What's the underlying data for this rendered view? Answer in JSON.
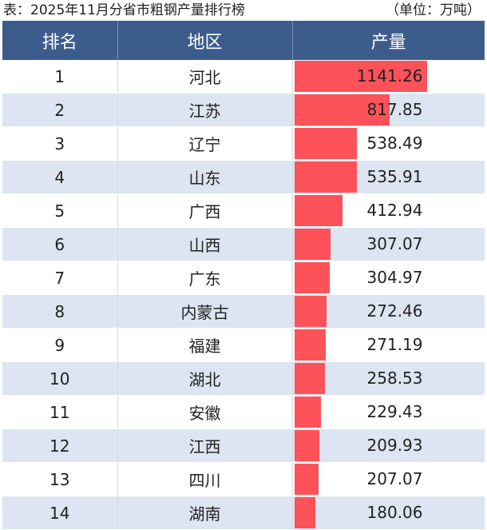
{
  "caption": {
    "title": "表：2025年11月分省市粗钢产量排行榜",
    "unit": "（单位：万吨）"
  },
  "columns": [
    "排名",
    "地区",
    "产量"
  ],
  "colors": {
    "header": "#3c5d8c",
    "bar": "#fe525a",
    "row_alt": "#dce5f1"
  },
  "chart_data": {
    "type": "table",
    "title": "表：2025年11月分省市粗钢产量排行榜",
    "unit": "（单位：万吨）",
    "columns": [
      "排名",
      "地区",
      "产量"
    ],
    "rows": [
      {
        "rank": "1",
        "region": "河北",
        "value": 1141.26
      },
      {
        "rank": "2",
        "region": "江苏",
        "value": 817.85
      },
      {
        "rank": "3",
        "region": "辽宁",
        "value": 538.49
      },
      {
        "rank": "4",
        "region": "山东",
        "value": 535.91
      },
      {
        "rank": "5",
        "region": "广西",
        "value": 412.94
      },
      {
        "rank": "6",
        "region": "山西",
        "value": 307.07
      },
      {
        "rank": "7",
        "region": "广东",
        "value": 304.97
      },
      {
        "rank": "8",
        "region": "内蒙古",
        "value": 272.46
      },
      {
        "rank": "9",
        "region": "福建",
        "value": 271.19
      },
      {
        "rank": "10",
        "region": "湖北",
        "value": 258.53
      },
      {
        "rank": "11",
        "region": "安徽",
        "value": 229.43
      },
      {
        "rank": "12",
        "region": "江西",
        "value": 209.93
      },
      {
        "rank": "13",
        "region": "四川",
        "value": 207.07
      },
      {
        "rank": "14",
        "region": "湖南",
        "value": 180.06
      }
    ]
  }
}
